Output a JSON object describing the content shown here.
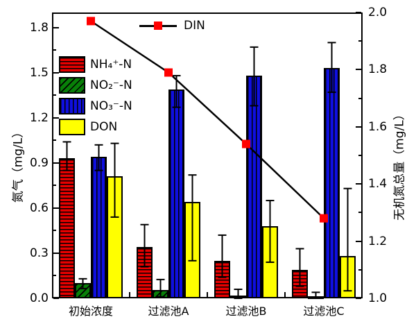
{
  "chart_data": {
    "type": "bar",
    "title": "",
    "categories": [
      "初始浓度",
      "过滤池A",
      "过滤池B",
      "过滤池C"
    ],
    "left_axis": {
      "label": "氮气（mg/L）",
      "min": 0.0,
      "max": 1.9,
      "tick_labels": [
        "0.0",
        "0.3",
        "0.6",
        "0.9",
        "1.2",
        "1.5",
        "1.8"
      ],
      "minor_step": 0.15
    },
    "right_axis": {
      "label": "无机氮总量（mg/L）",
      "min": 1.0,
      "max": 2.0,
      "tick_labels": [
        "1.0",
        "1.2",
        "1.4",
        "1.6",
        "1.8",
        "2.0"
      ],
      "minor_step": 0.1
    },
    "grid": false,
    "legend_position": "upper-left-inside",
    "series": [
      {
        "name": "NH₄⁺-N",
        "color": "#e80000",
        "hatch": "horizontal",
        "values": [
          0.93,
          0.34,
          0.25,
          0.19
        ],
        "err_low": [
          0.85,
          0.21,
          0.14,
          0.08
        ],
        "err_high": [
          1.04,
          0.49,
          0.42,
          0.33
        ]
      },
      {
        "name": "NO₂⁻-N",
        "color": "#088008",
        "hatch": "diagonal",
        "values": [
          0.1,
          0.055,
          0.02,
          0.015
        ],
        "err_low": [
          0.065,
          0.01,
          0.0,
          0.0
        ],
        "err_high": [
          0.13,
          0.125,
          0.06,
          0.04
        ]
      },
      {
        "name": "NO₃⁻-N",
        "color": "#0f0fe0",
        "hatch": "vertical",
        "values": [
          0.94,
          1.39,
          1.48,
          1.53
        ],
        "err_low": [
          0.85,
          1.27,
          1.28,
          1.37
        ],
        "err_high": [
          1.02,
          1.48,
          1.67,
          1.7
        ]
      },
      {
        "name": "DON",
        "color": "#ffff00",
        "hatch": "none",
        "values": [
          0.81,
          0.64,
          0.48,
          0.28
        ],
        "err_low": [
          0.54,
          0.25,
          0.24,
          0.05
        ],
        "err_high": [
          1.03,
          0.82,
          0.65,
          0.73
        ]
      }
    ],
    "line_series": {
      "name": "DIN",
      "axis": "right",
      "line_color": "#000000",
      "marker": "square",
      "marker_color": "#ff0000",
      "values": [
        1.97,
        1.79,
        1.54,
        1.28
      ]
    }
  }
}
